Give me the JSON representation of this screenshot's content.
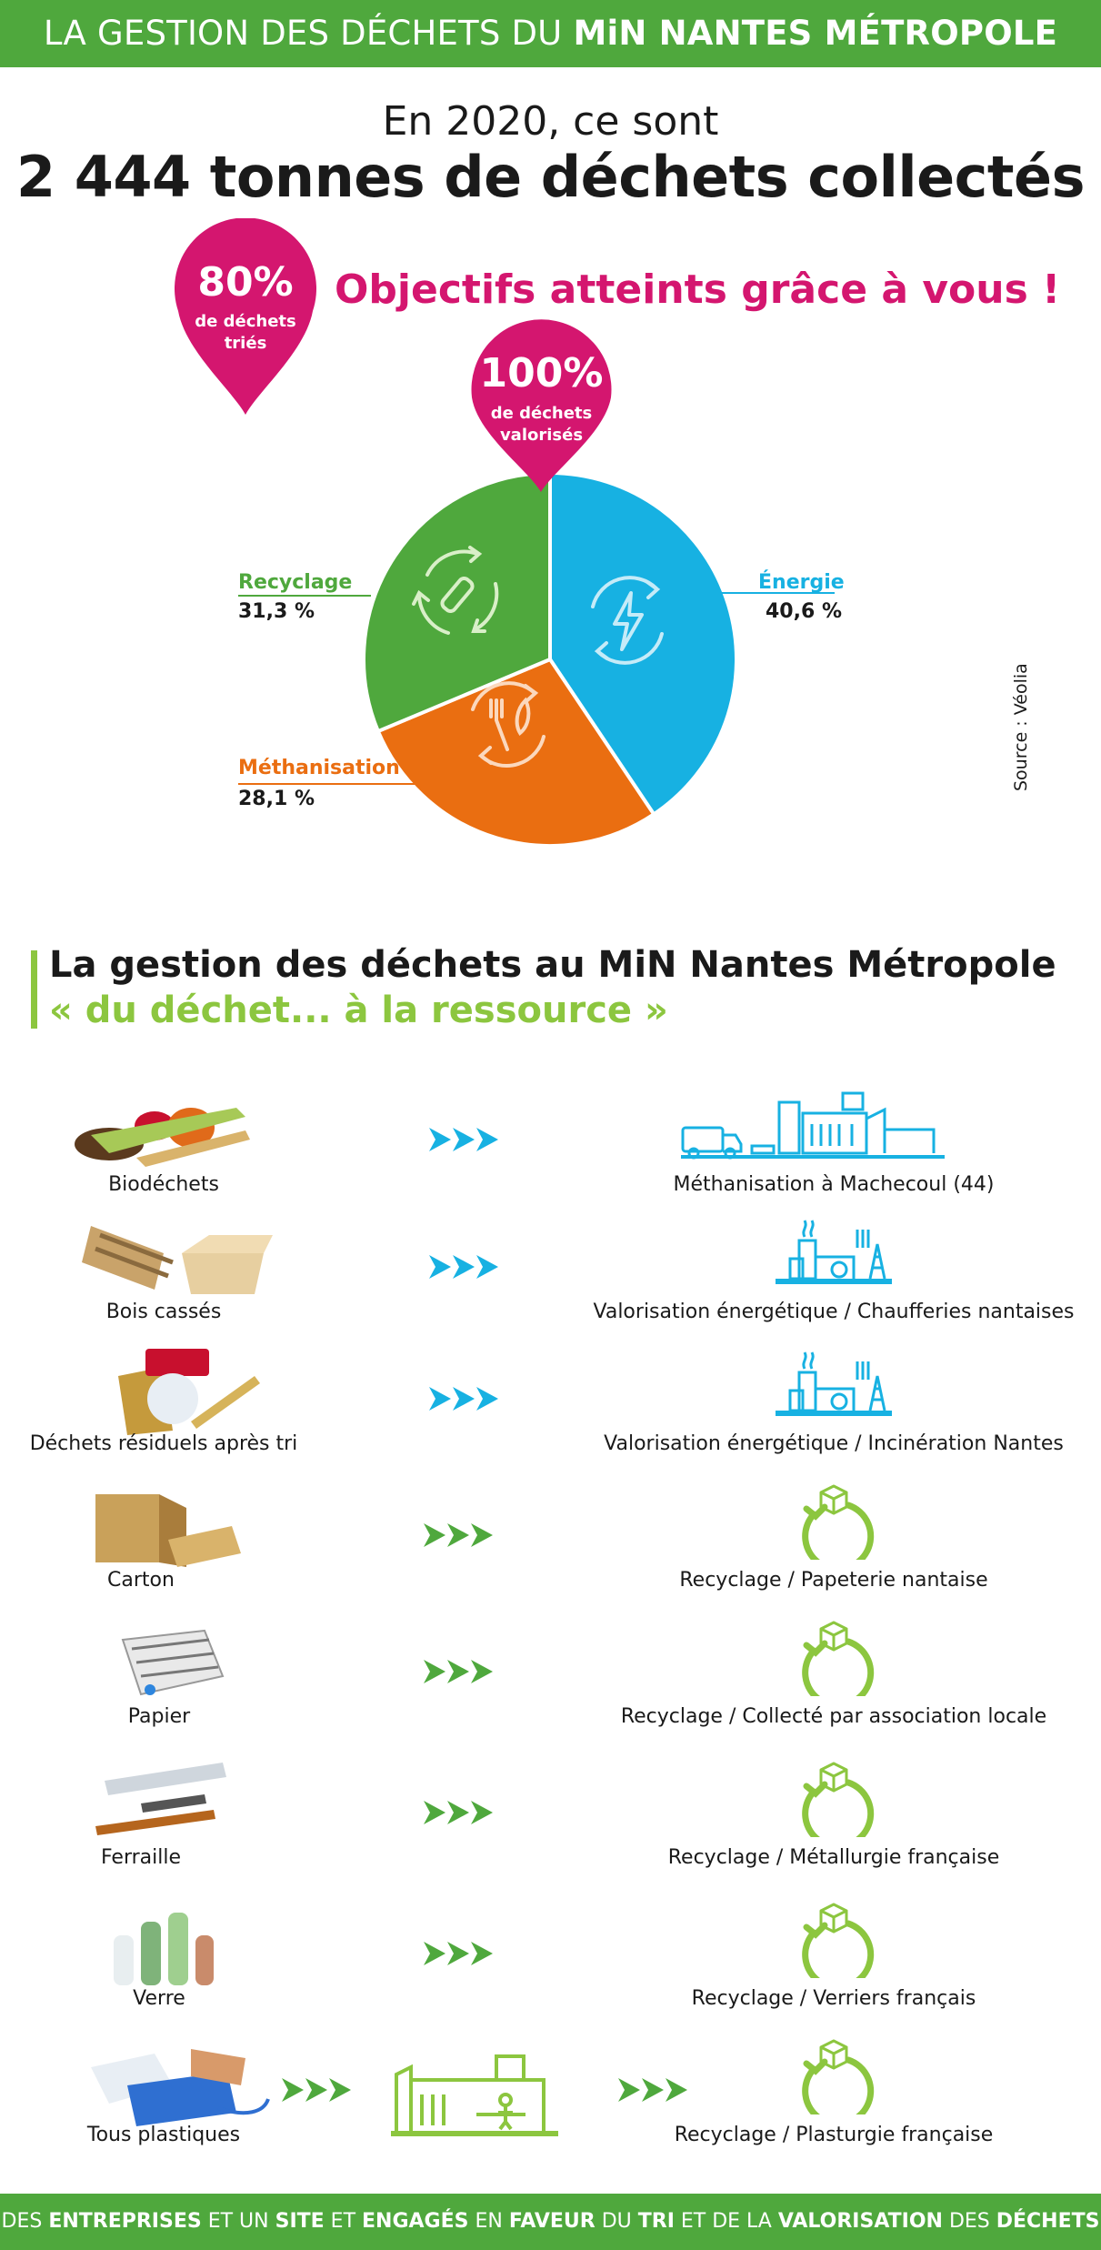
{
  "header": {
    "title_regular": "LA GESTION DES DÉCHETS DU ",
    "title_bold": "MiN NANTES MÉTROPOLE"
  },
  "intro": {
    "line1": "En 2020, ce sont",
    "headline": "2 444 tonnes de déchets collectés"
  },
  "objectives": "Objectifs atteints grâce à vous !",
  "pins": {
    "sorted": {
      "value": "80%",
      "line1": "de déchets",
      "line2": "triés"
    },
    "recovered": {
      "value": "100%",
      "line1": "de déchets",
      "line2": "valorisés"
    }
  },
  "colors": {
    "green_header": "#4fa83d",
    "magenta": "#d4166f",
    "recyclage": "#4fa83d",
    "energie": "#17b1e2",
    "methanisation": "#ea6e11",
    "lime": "#8cc63f"
  },
  "chart_data": {
    "type": "pie",
    "slices": [
      {
        "name": "Énergie",
        "value": 40.6,
        "label": "40,6 %"
      },
      {
        "name": "Méthanisation",
        "value": 28.1,
        "label": "28,1 %"
      },
      {
        "name": "Recyclage",
        "value": 31.3,
        "label": "31,3 %"
      }
    ]
  },
  "source": "Source : Véolia",
  "section": {
    "title": "La gestion des déchets au MiN Nantes Métropole",
    "subtitle": "« du déchet... à la ressource »"
  },
  "flows": [
    {
      "waste": "Biodéchets",
      "destination": "Méthanisation à Machecoul (44)",
      "dest_icon": "factory-truck-icon",
      "arrow_color": "#17b1e2"
    },
    {
      "waste": "Bois cassés",
      "destination": "Valorisation énergétique / Chaufferies nantaises",
      "dest_icon": "energy-plant-icon",
      "arrow_color": "#17b1e2"
    },
    {
      "waste": "Déchets résiduels après tri",
      "destination": "Valorisation énergétique / Incinération Nantes",
      "dest_icon": "energy-plant-icon",
      "arrow_color": "#17b1e2"
    },
    {
      "waste": "Carton",
      "destination": "Recyclage / Papeterie nantaise",
      "dest_icon": "recycle-box-icon",
      "arrow_color": "#4fa83d"
    },
    {
      "waste": "Papier",
      "destination": "Recyclage / Collecté par association locale",
      "dest_icon": "recycle-box-icon",
      "arrow_color": "#4fa83d"
    },
    {
      "waste": "Ferraille",
      "destination": "Recyclage / Métallurgie française",
      "dest_icon": "recycle-box-icon",
      "arrow_color": "#4fa83d"
    },
    {
      "waste": "Verre",
      "destination": "Recyclage / Verriers français",
      "dest_icon": "recycle-box-icon",
      "arrow_color": "#4fa83d"
    },
    {
      "waste": "Tous plastiques",
      "destination": "Recyclage / Plasturgie française",
      "dest_icon": "recycle-box-icon",
      "arrow_color": "#4fa83d"
    }
  ],
  "footer": [
    {
      "t": "DES ",
      "b": false
    },
    {
      "t": "ENTREPRISES",
      "b": true
    },
    {
      "t": " ET UN ",
      "b": false
    },
    {
      "t": "SITE",
      "b": true
    },
    {
      "t": " ET ",
      "b": false
    },
    {
      "t": "ENGAGÉS",
      "b": true
    },
    {
      "t": " EN ",
      "b": false
    },
    {
      "t": "FAVEUR",
      "b": true
    },
    {
      "t": " DU ",
      "b": false
    },
    {
      "t": "TRI",
      "b": true
    },
    {
      "t": " ET DE LA ",
      "b": false
    },
    {
      "t": "VALORISATION",
      "b": true
    },
    {
      "t": " DES ",
      "b": false
    },
    {
      "t": "DÉCHETS",
      "b": true
    }
  ]
}
